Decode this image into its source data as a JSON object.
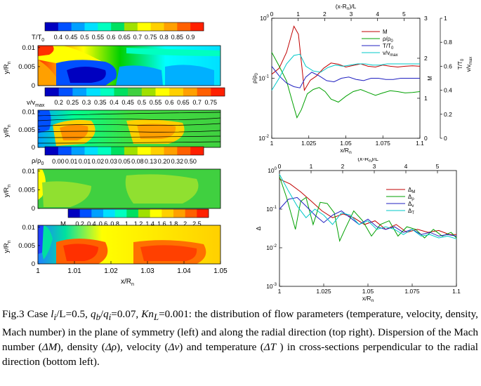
{
  "left_panel": {
    "colorbars": [
      {
        "label": "T/T",
        "sub": "0",
        "ticks": [
          "0.4",
          "0.45",
          "0.5",
          "0.55",
          "0.6",
          "0.65",
          "0.7",
          "0.75",
          "0.8",
          "0.85",
          "0.9"
        ]
      },
      {
        "label": "v/v",
        "sub": "max",
        "ticks": [
          "0.2",
          "0.25",
          "0.3",
          "0.35",
          "0.4",
          "0.45",
          "0.5",
          "0.55",
          "0.6",
          "0.65",
          "0.7",
          "0.75"
        ]
      },
      {
        "label": "ρ/ρ",
        "sub": "0",
        "ticks": [
          "0.00",
          "0.01",
          "0.01",
          "0.02",
          "0.03",
          "0.05",
          "0.08",
          "0.13",
          "0.20",
          "0.32",
          "0.50"
        ]
      },
      {
        "label": "M",
        "sub": "",
        "ticks": [
          "0.2",
          "0.4",
          "0.6",
          "0.8",
          "1",
          "1.2",
          "1.4",
          "1.6",
          "1.8",
          "2",
          "2.5"
        ]
      }
    ],
    "ylabel": "y/R",
    "ylabel_sub": "n",
    "yticks": [
      "0",
      "0.005",
      "0.01"
    ],
    "xlabel": "x/R",
    "xlabel_sub": "n",
    "xticks": [
      "1",
      "1.01",
      "1.02",
      "1.03",
      "1.04",
      "1.05"
    ]
  },
  "chart_data": [
    {
      "type": "line",
      "x_label": "x/R",
      "x_label_sub": "n",
      "x_range": [
        1,
        1.1
      ],
      "x_ticks": [
        "1",
        "1.025",
        "1.05",
        "1.075",
        "1.1"
      ],
      "top_label": "(x-R",
      "top_label_sub": "n",
      "top_label_end": ")/L",
      "top_range": [
        0,
        5.6
      ],
      "top_ticks": [
        "0",
        "1",
        "2",
        "3",
        "4",
        "5"
      ],
      "left_axis": {
        "label": "ρ/ρ",
        "label_sub": "0",
        "scale": "log",
        "range": [
          0.01,
          1
        ],
        "ticks": [
          "10",
          "10",
          "10"
        ],
        "tick_exps": [
          "-2",
          "-1",
          "0"
        ]
      },
      "right_axis_1": {
        "label": "M",
        "range": [
          0,
          3
        ],
        "ticks": [
          "0",
          "1",
          "2",
          "3"
        ]
      },
      "right_axis_2": {
        "label": "T/T",
        "label_sub": "0",
        "label_b": "v/v",
        "label_b_sub": "max",
        "range": [
          0,
          1
        ],
        "ticks": [
          "0",
          "0.2",
          "0.4",
          "0.6",
          "0.8",
          "1"
        ]
      },
      "series": [
        {
          "name": "M",
          "sub": "",
          "color": "#c00000",
          "axis": "M",
          "x": [
            1.0,
            1.005,
            1.01,
            1.015,
            1.018,
            1.022,
            1.026,
            1.03,
            1.035,
            1.04,
            1.045,
            1.05,
            1.055,
            1.06,
            1.065,
            1.07,
            1.075,
            1.08,
            1.085,
            1.09,
            1.095,
            1.1
          ],
          "y": [
            1.6,
            1.75,
            2.15,
            2.8,
            2.6,
            1.2,
            1.45,
            1.55,
            1.75,
            1.88,
            1.85,
            1.78,
            1.82,
            1.86,
            1.8,
            1.78,
            1.83,
            1.8,
            1.78,
            1.8,
            1.81,
            1.8
          ]
        },
        {
          "name": "ρ/ρ",
          "sub": "0",
          "color": "#00a000",
          "axis": "rho",
          "x": [
            1.0,
            1.005,
            1.01,
            1.014,
            1.017,
            1.02,
            1.024,
            1.028,
            1.032,
            1.036,
            1.04,
            1.045,
            1.05,
            1.055,
            1.06,
            1.065,
            1.07,
            1.075,
            1.08,
            1.085,
            1.09,
            1.095,
            1.1
          ],
          "y": [
            0.27,
            0.16,
            0.09,
            0.04,
            0.022,
            0.03,
            0.055,
            0.065,
            0.07,
            0.06,
            0.045,
            0.04,
            0.05,
            0.06,
            0.065,
            0.058,
            0.052,
            0.057,
            0.062,
            0.06,
            0.057,
            0.058,
            0.06
          ]
        },
        {
          "name": "T/T",
          "sub": "0",
          "color": "#2020c0",
          "axis": "T",
          "x": [
            1.0,
            1.005,
            1.01,
            1.015,
            1.019,
            1.023,
            1.027,
            1.032,
            1.037,
            1.042,
            1.047,
            1.052,
            1.057,
            1.062,
            1.067,
            1.072,
            1.077,
            1.082,
            1.087,
            1.092,
            1.1
          ],
          "y": [
            0.6,
            0.52,
            0.46,
            0.43,
            0.42,
            0.51,
            0.55,
            0.52,
            0.48,
            0.47,
            0.5,
            0.51,
            0.49,
            0.48,
            0.5,
            0.5,
            0.49,
            0.49,
            0.5,
            0.5,
            0.5
          ]
        },
        {
          "name": "v/v",
          "sub": "max",
          "color": "#00c8c8",
          "axis": "T",
          "x": [
            1.0,
            1.005,
            1.01,
            1.015,
            1.019,
            1.023,
            1.028,
            1.033,
            1.038,
            1.043,
            1.048,
            1.053,
            1.058,
            1.063,
            1.068,
            1.073,
            1.078,
            1.083,
            1.088,
            1.093,
            1.1
          ],
          "y": [
            0.4,
            0.5,
            0.62,
            0.69,
            0.7,
            0.6,
            0.56,
            0.55,
            0.59,
            0.61,
            0.6,
            0.61,
            0.62,
            0.62,
            0.61,
            0.61,
            0.62,
            0.62,
            0.62,
            0.62,
            0.62
          ]
        }
      ]
    },
    {
      "type": "line",
      "x_label": "x/R",
      "x_label_sub": "n",
      "x_range": [
        1,
        1.1
      ],
      "x_ticks": [
        "1",
        "1.025",
        "1.05",
        "1.075",
        "1.1"
      ],
      "top_label": "(x-R",
      "top_label_sub": "n",
      "top_label_end": ")/L",
      "top_range": [
        0,
        5.6
      ],
      "top_ticks": [
        "0",
        "1",
        "2",
        "3",
        "4",
        "5"
      ],
      "y_label": "Δ",
      "y_scale": "log",
      "y_range": [
        0.001,
        1
      ],
      "y_ticks": [
        "10",
        "10",
        "10",
        "10"
      ],
      "y_tick_exps": [
        "-3",
        "-2",
        "-1",
        "0"
      ],
      "series": [
        {
          "name": "Δ",
          "sub": "M",
          "color": "#c00000",
          "x": [
            1.0,
            1.006,
            1.012,
            1.018,
            1.024,
            1.03,
            1.036,
            1.042,
            1.048,
            1.054,
            1.06,
            1.066,
            1.072,
            1.078,
            1.084,
            1.09,
            1.096,
            1.1
          ],
          "y": [
            0.6,
            0.45,
            0.28,
            0.16,
            0.09,
            0.06,
            0.075,
            0.06,
            0.04,
            0.05,
            0.03,
            0.04,
            0.025,
            0.03,
            0.025,
            0.028,
            0.022,
            0.022
          ]
        },
        {
          "name": "Δ",
          "sub": "ρ",
          "color": "#00a000",
          "x": [
            1.0,
            1.004,
            1.009,
            1.012,
            1.015,
            1.019,
            1.023,
            1.027,
            1.031,
            1.034,
            1.037,
            1.042,
            1.047,
            1.052,
            1.057,
            1.062,
            1.067,
            1.072,
            1.077,
            1.082,
            1.087,
            1.092,
            1.097,
            1.1
          ],
          "y": [
            0.7,
            0.2,
            0.03,
            0.16,
            0.2,
            0.04,
            0.15,
            0.14,
            0.08,
            0.015,
            0.03,
            0.09,
            0.05,
            0.02,
            0.04,
            0.05,
            0.02,
            0.035,
            0.03,
            0.018,
            0.03,
            0.02,
            0.025,
            0.018
          ]
        },
        {
          "name": "Δ",
          "sub": "v",
          "color": "#2020c0",
          "x": [
            1.0,
            1.005,
            1.01,
            1.015,
            1.02,
            1.025,
            1.03,
            1.035,
            1.04,
            1.045,
            1.05,
            1.055,
            1.06,
            1.065,
            1.07,
            1.075,
            1.08,
            1.085,
            1.09,
            1.095,
            1.1
          ],
          "y": [
            0.1,
            0.18,
            0.2,
            0.12,
            0.07,
            0.045,
            0.07,
            0.09,
            0.06,
            0.04,
            0.055,
            0.035,
            0.03,
            0.035,
            0.025,
            0.03,
            0.022,
            0.025,
            0.02,
            0.022,
            0.02
          ]
        },
        {
          "name": "Δ",
          "sub": "T",
          "color": "#00c8c8",
          "x": [
            1.0,
            1.005,
            1.01,
            1.015,
            1.02,
            1.025,
            1.03,
            1.035,
            1.04,
            1.045,
            1.05,
            1.055,
            1.06,
            1.065,
            1.07,
            1.075,
            1.08,
            1.085,
            1.09,
            1.095,
            1.1
          ],
          "y": [
            0.8,
            0.3,
            0.12,
            0.06,
            0.1,
            0.07,
            0.04,
            0.08,
            0.07,
            0.04,
            0.05,
            0.03,
            0.035,
            0.03,
            0.022,
            0.03,
            0.02,
            0.022,
            0.018,
            0.02,
            0.017
          ]
        }
      ]
    }
  ],
  "caption_parts": {
    "fig": "Fig.3 Case ",
    "l_i": "l",
    "l_i_sub": "i",
    "over_L": "/L",
    "eq1": "=0.5, ",
    "q_b": "q",
    "q_b_sub": "b",
    "slash": "/",
    "q_i": "q",
    "q_i_sub": "i",
    "eq2": "=0.07, ",
    "Kn": "Kn",
    "Kn_sub": "L",
    "rest1": "=0.001: the distribution of flow parameters (temperature, velocity, density, Mach number) in the plane of symmetry (left) and along the radial direction (top right). Dispersion of the Mach number (",
    "dM": "ΔM",
    "rest2": "), density (",
    "drho": "Δρ",
    "rest3": "), velocity (",
    "dv": "Δv",
    "rest4": ") and temperature (",
    "dT": "ΔT",
    "rest5": " ) in cross-sections perpendicular to the radial direction (bottom left)."
  }
}
